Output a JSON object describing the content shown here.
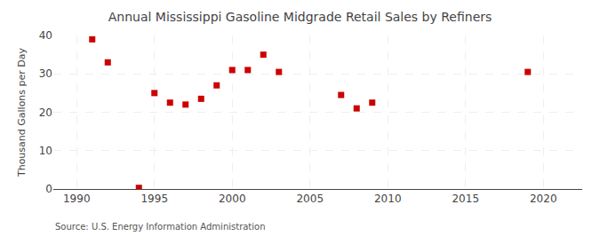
{
  "chart_data": {
    "type": "scatter",
    "title": "Annual Mississippi Gasoline Midgrade Retail Sales by Refiners",
    "ylabel": "Thousand Gallons per Day",
    "annotations": [
      "Source: U.S. Energy Information Administration"
    ],
    "x": [
      1991,
      1992,
      1994,
      1995,
      1996,
      1997,
      1998,
      1999,
      2000,
      2001,
      2002,
      2003,
      2007,
      2008,
      2009,
      2019
    ],
    "values": [
      39.0,
      33.0,
      0.3,
      25.0,
      22.5,
      22.0,
      23.5,
      27.0,
      31.0,
      31.0,
      35.0,
      30.5,
      24.5,
      21.0,
      22.5,
      30.5
    ],
    "color": "#cc0000",
    "marker": "square",
    "xlim": [
      1988.5,
      2022.5
    ],
    "ylim": [
      0,
      40
    ],
    "xticks": [
      1990,
      1995,
      2000,
      2005,
      2010,
      2015,
      2020
    ],
    "yticks": [
      0,
      10,
      20,
      30,
      40
    ],
    "grid": true
  }
}
